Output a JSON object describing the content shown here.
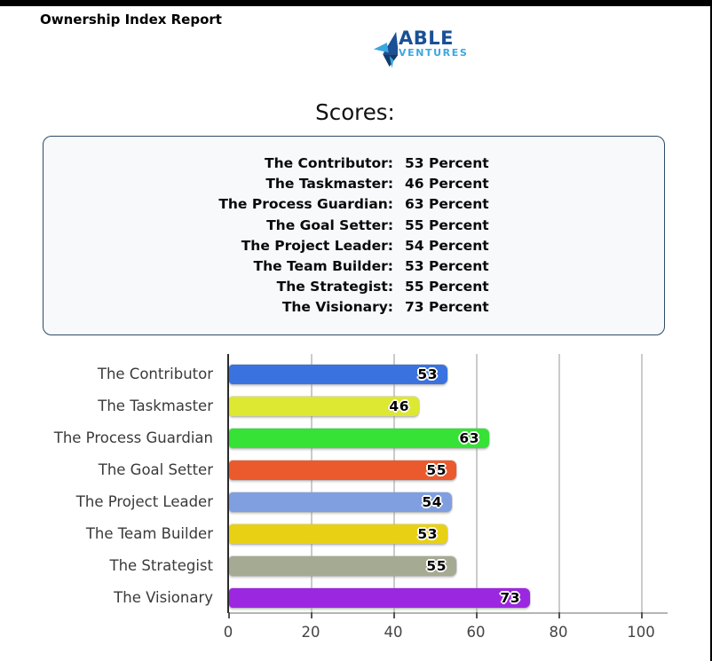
{
  "page": {
    "title": "Ownership Index Report"
  },
  "logo": {
    "name": "ABLE",
    "subname": "VENTURES",
    "color_dark": "#1a5096",
    "color_light": "#3aa7e0"
  },
  "scores": {
    "heading": "Scores:",
    "items": [
      {
        "label": "The Contributor:",
        "value": "53 Percent"
      },
      {
        "label": "The Taskmaster:",
        "value": "46 Percent"
      },
      {
        "label": "The Process Guardian:",
        "value": "63 Percent"
      },
      {
        "label": "The Goal Setter:",
        "value": "55 Percent"
      },
      {
        "label": "The Project Leader:",
        "value": "54 Percent"
      },
      {
        "label": "The Team Builder:",
        "value": "53 Percent"
      },
      {
        "label": "The Strategist:",
        "value": "55 Percent"
      },
      {
        "label": "The Visionary:",
        "value": "73 Percent"
      }
    ]
  },
  "chart_data": {
    "type": "bar",
    "orientation": "horizontal",
    "categories": [
      "The Contributor",
      "The Taskmaster",
      "The Process Guardian",
      "The Goal Setter",
      "The Project Leader",
      "The Team Builder",
      "The Strategist",
      "The Visionary"
    ],
    "values": [
      53,
      46,
      63,
      55,
      54,
      53,
      55,
      73
    ],
    "bar_colors": [
      "#3a72e0",
      "#dde832",
      "#35e235",
      "#eb5a2d",
      "#7f9fe0",
      "#e8d114",
      "#a5aa92",
      "#9c27e0"
    ],
    "xticks": [
      0,
      20,
      40,
      60,
      80,
      100
    ],
    "xlim": [
      0,
      100
    ],
    "grid": true,
    "gridline_color": "#cbcbcb",
    "value_labels": true,
    "legend": false
  }
}
